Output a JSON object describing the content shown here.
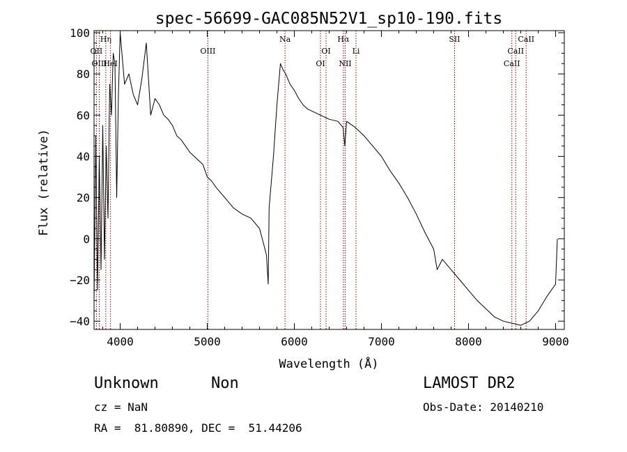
{
  "chart_data": {
    "type": "line",
    "title": "spec-56699-GAC085N52V1_sp10-190.fits",
    "xlabel": "Wavelength (Å)",
    "ylabel": "Flux (relative)",
    "xlim": [
      3700,
      9100
    ],
    "ylim": [
      -44,
      101
    ],
    "xticks": [
      4000,
      5000,
      6000,
      7000,
      8000,
      9000
    ],
    "yticks": [
      -40,
      -20,
      0,
      20,
      40,
      60,
      80,
      100
    ],
    "xtick_labels": [
      "4000",
      "5000",
      "6000",
      "7000",
      "8000",
      "9000"
    ],
    "ytick_labels": [
      "−40",
      "−20",
      "0",
      "20",
      "40",
      "60",
      "80",
      "100"
    ],
    "line_color": "#000000",
    "marker_color": "#8b0000",
    "series": [
      {
        "x": [
          3700,
          3720,
          3740,
          3760,
          3780,
          3800,
          3820,
          3840,
          3860,
          3880,
          3900,
          3920,
          3940,
          3960,
          3980,
          4000,
          4050,
          4100,
          4150,
          4200,
          4250,
          4300,
          4350,
          4400,
          4450,
          4500,
          4550,
          4600,
          4650,
          4700,
          4750,
          4800,
          4850,
          4900,
          4950,
          5000,
          5050,
          5100,
          5200,
          5300,
          5400,
          5500,
          5600,
          5650,
          5680,
          5700,
          5710,
          5730,
          5760,
          5800,
          5840,
          5870,
          5900,
          5950,
          6000,
          6050,
          6100,
          6150,
          6200,
          6300,
          6400,
          6500,
          6560,
          6580,
          6600,
          6700,
          6800,
          6900,
          7000,
          7100,
          7200,
          7300,
          7400,
          7500,
          7600,
          7640,
          7700,
          7800,
          7900,
          8000,
          8100,
          8200,
          8300,
          8400,
          8500,
          8600,
          8700,
          8800,
          8900,
          9000,
          9020
        ],
        "y": [
          -30,
          50,
          -25,
          40,
          -15,
          55,
          -10,
          45,
          10,
          75,
          60,
          90,
          85,
          20,
          70,
          100,
          75,
          80,
          70,
          65,
          78,
          95,
          60,
          68,
          65,
          60,
          58,
          55,
          50,
          48,
          45,
          42,
          40,
          38,
          36,
          30,
          28,
          25,
          20,
          15,
          12,
          10,
          5,
          -3,
          -8,
          -22,
          15,
          25,
          40,
          65,
          85,
          82,
          80,
          75,
          72,
          68,
          65,
          63,
          62,
          60,
          58,
          57,
          54,
          45,
          57,
          54,
          50,
          45,
          40,
          33,
          27,
          20,
          12,
          3,
          -5,
          -15,
          -10,
          -15,
          -20,
          -25,
          -30,
          -34,
          -38,
          -40,
          -41,
          -42,
          -40,
          -35,
          -28,
          -22,
          0
        ]
      }
    ],
    "line_markers": [
      {
        "label": "OII",
        "x": 3727,
        "row": 2
      },
      {
        "label": "OIII",
        "x": 3760,
        "row": 3
      },
      {
        "label": "Hη",
        "x": 3835,
        "row": 1
      },
      {
        "label": "HeI",
        "x": 3889,
        "row": 3
      },
      {
        "label": "OIII",
        "x": 5007,
        "row": 2
      },
      {
        "label": "Na",
        "x": 5893,
        "row": 1
      },
      {
        "label": "OI",
        "x": 6300,
        "row": 3
      },
      {
        "label": "OI",
        "x": 6364,
        "row": 2
      },
      {
        "label": "Hα",
        "x": 6563,
        "row": 1
      },
      {
        "label": "NII",
        "x": 6584,
        "row": 3
      },
      {
        "label": "Li",
        "x": 6708,
        "row": 2
      },
      {
        "label": "SII",
        "x": 7840,
        "row": 1
      },
      {
        "label": "CaII",
        "x": 8498,
        "row": 3
      },
      {
        "label": "CaII",
        "x": 8542,
        "row": 2
      },
      {
        "label": "CaII",
        "x": 8662,
        "row": 1
      }
    ]
  },
  "info": {
    "class_name": "Unknown",
    "subclass": "Non",
    "survey": "LAMOST DR2",
    "cz": "cz = NaN",
    "obs_date": "Obs-Date: 20140210",
    "coords": "RA =  81.80890, DEC =  51.44206"
  }
}
